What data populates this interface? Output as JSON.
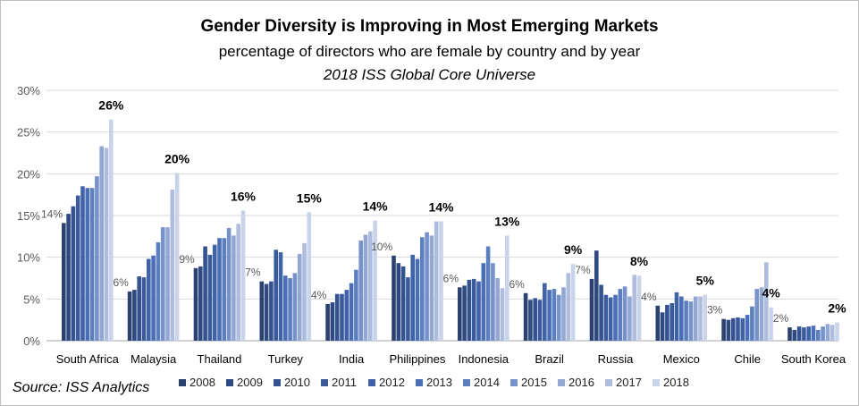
{
  "chart_data": {
    "type": "bar",
    "title": "Gender Diversity is Improving in Most Emerging Markets",
    "subtitle": "percentage of directors who are female by country and by year",
    "subtitle2": "2018 ISS Global Core Universe",
    "source": "Source: ISS Analytics",
    "ylim": [
      0,
      30
    ],
    "yticks": [
      "0%",
      "5%",
      "10%",
      "15%",
      "20%",
      "25%",
      "30%"
    ],
    "ytick_values": [
      0,
      5,
      10,
      15,
      20,
      25,
      30
    ],
    "categories": [
      "South Africa",
      "Malaysia",
      "Thailand",
      "Turkey",
      "India",
      "Philippines",
      "Indonesia",
      "Brazil",
      "Russia",
      "Mexico",
      "Chile",
      "South Korea"
    ],
    "series": [
      {
        "name": "2008",
        "color": "#2b4170",
        "values": [
          14.1,
          5.9,
          8.7,
          7.1,
          4.4,
          10.2,
          6.4,
          5.7,
          7.4,
          4.2,
          2.6,
          1.6
        ]
      },
      {
        "name": "2009",
        "color": "#2f4a80",
        "values": [
          15.2,
          6.1,
          8.9,
          6.8,
          4.6,
          9.3,
          6.6,
          4.9,
          10.8,
          3.4,
          2.5,
          1.3
        ]
      },
      {
        "name": "2010",
        "color": "#34528f",
        "values": [
          16.1,
          7.7,
          11.3,
          7.1,
          5.6,
          8.9,
          7.3,
          5.1,
          6.7,
          4.3,
          2.7,
          1.7
        ]
      },
      {
        "name": "2011",
        "color": "#3a5a9c",
        "values": [
          17.4,
          7.6,
          10.3,
          10.9,
          5.6,
          7.6,
          7.4,
          4.9,
          5.5,
          4.5,
          2.8,
          1.6
        ]
      },
      {
        "name": "2012",
        "color": "#4063a8",
        "values": [
          18.5,
          9.8,
          11.5,
          10.6,
          6.1,
          10.3,
          7.1,
          6.9,
          5.2,
          5.8,
          2.7,
          1.7
        ]
      },
      {
        "name": "2013",
        "color": "#4a6fb6",
        "values": [
          18.3,
          10.2,
          12.3,
          7.8,
          6.9,
          9.8,
          9.3,
          6.1,
          5.5,
          5.3,
          3.1,
          1.8
        ]
      },
      {
        "name": "2014",
        "color": "#5c7fc0",
        "values": [
          18.3,
          11.8,
          12.3,
          7.5,
          8.5,
          12.4,
          11.3,
          6.2,
          6.2,
          4.8,
          4.1,
          1.3
        ]
      },
      {
        "name": "2015",
        "color": "#7791c9",
        "values": [
          19.7,
          13.6,
          13.5,
          8.1,
          12.0,
          13.0,
          9.3,
          5.5,
          6.5,
          4.7,
          6.2,
          1.7
        ]
      },
      {
        "name": "2016",
        "color": "#93a7d3",
        "values": [
          23.3,
          13.6,
          12.6,
          10.4,
          12.7,
          12.6,
          7.5,
          6.4,
          5.3,
          5.3,
          6.4,
          2.0
        ]
      },
      {
        "name": "2017",
        "color": "#aebcdd",
        "values": [
          23.1,
          18.1,
          14.0,
          11.7,
          13.1,
          14.3,
          6.3,
          8.1,
          7.9,
          5.3,
          9.4,
          1.9
        ]
      },
      {
        "name": "2018",
        "color": "#c9d3ea",
        "values": [
          26.5,
          20.1,
          15.6,
          15.4,
          14.4,
          14.3,
          12.6,
          9.2,
          7.8,
          5.5,
          4.0,
          2.2
        ]
      }
    ],
    "start_labels": [
      "14%",
      "6%",
      "9%",
      "7%",
      "4%",
      "10%",
      "6%",
      "6%",
      "7%",
      "4%",
      "3%",
      "2%"
    ],
    "end_labels": [
      "26%",
      "20%",
      "16%",
      "15%",
      "14%",
      "14%",
      "13%",
      "9%",
      "8%",
      "5%",
      "4%",
      "2%"
    ],
    "gridlines": true,
    "legend_position": "bottom"
  }
}
